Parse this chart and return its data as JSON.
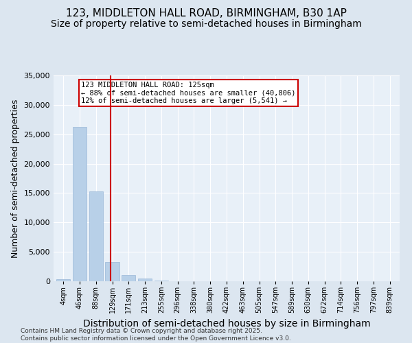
{
  "title": "123, MIDDLETON HALL ROAD, BIRMINGHAM, B30 1AP",
  "subtitle": "Size of property relative to semi-detached houses in Birmingham",
  "xlabel": "Distribution of semi-detached houses by size in Birmingham",
  "ylabel": "Number of semi-detached properties",
  "categories": [
    "4sqm",
    "46sqm",
    "88sqm",
    "129sqm",
    "171sqm",
    "213sqm",
    "255sqm",
    "296sqm",
    "338sqm",
    "380sqm",
    "422sqm",
    "463sqm",
    "505sqm",
    "547sqm",
    "589sqm",
    "630sqm",
    "672sqm",
    "714sqm",
    "756sqm",
    "797sqm",
    "839sqm"
  ],
  "values": [
    400,
    26300,
    15300,
    3300,
    1050,
    450,
    150,
    0,
    0,
    0,
    0,
    0,
    0,
    0,
    0,
    0,
    0,
    0,
    0,
    0,
    0
  ],
  "bar_color": "#b8d0e8",
  "bar_edgecolor": "#9ab8d8",
  "vline_x": 2.88,
  "vline_color": "#cc0000",
  "annotation_text": "123 MIDDLETON HALL ROAD: 125sqm\n← 88% of semi-detached houses are smaller (40,806)\n12% of semi-detached houses are larger (5,541) →",
  "annotation_box_edgecolor": "#cc0000",
  "ylim": [
    0,
    35000
  ],
  "yticks": [
    0,
    5000,
    10000,
    15000,
    20000,
    25000,
    30000,
    35000
  ],
  "footer": "Contains HM Land Registry data © Crown copyright and database right 2025.\nContains public sector information licensed under the Open Government Licence v3.0.",
  "bg_color": "#dce6f0",
  "plot_bg_color": "#e8f0f8",
  "title_fontsize": 11,
  "subtitle_fontsize": 10,
  "axis_label_fontsize": 9,
  "tick_fontsize": 8,
  "footer_fontsize": 6.5
}
